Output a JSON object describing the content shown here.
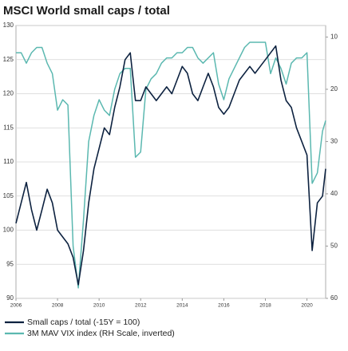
{
  "chart_data": {
    "type": "line",
    "title": "MSCI World small caps / total",
    "x": [
      2006,
      2006.25,
      2006.5,
      2006.75,
      2007,
      2007.25,
      2007.5,
      2007.75,
      2008,
      2008.25,
      2008.5,
      2008.75,
      2009,
      2009.25,
      2009.5,
      2009.75,
      2010,
      2010.25,
      2010.5,
      2010.75,
      2011,
      2011.25,
      2011.5,
      2011.75,
      2012,
      2012.25,
      2012.5,
      2012.75,
      2013,
      2013.25,
      2013.5,
      2013.75,
      2014,
      2014.25,
      2014.5,
      2014.75,
      2015,
      2015.25,
      2015.5,
      2015.75,
      2016,
      2016.25,
      2016.5,
      2016.75,
      2017,
      2017.25,
      2017.5,
      2017.75,
      2018,
      2018.25,
      2018.5,
      2018.75,
      2019,
      2019.25,
      2019.5,
      2019.75,
      2020,
      2020.25,
      2020.5,
      2020.75,
      2020.9
    ],
    "series": [
      {
        "name": "Small caps / total (-15Y = 100)",
        "color": "#0d2240",
        "axis": "y",
        "values": [
          101,
          104,
          107,
          103,
          100,
          103,
          106,
          104,
          100,
          99,
          98,
          96,
          92,
          97,
          104,
          109,
          112,
          115,
          114,
          118,
          121,
          125,
          126,
          119,
          119,
          121,
          120,
          119,
          120,
          121,
          120,
          122,
          124,
          123,
          120,
          119,
          121,
          123,
          121,
          118,
          117,
          118,
          120,
          122,
          123,
          124,
          123,
          124,
          125,
          126,
          127,
          122,
          119,
          118,
          115,
          113,
          111,
          97,
          104,
          105,
          109
        ]
      },
      {
        "name": "3M  MAV VIX index (RH Scale, inverted)",
        "color": "#5bb8b0",
        "axis": "y2",
        "values": [
          13,
          13,
          15,
          13,
          12,
          12,
          15,
          17,
          24,
          22,
          23,
          50,
          58,
          45,
          30,
          25,
          22,
          24,
          25,
          20,
          17,
          16,
          16,
          33,
          32,
          20,
          18,
          17,
          15,
          14,
          14,
          13,
          13,
          12,
          12,
          14,
          15,
          14,
          13,
          19,
          22,
          18,
          16,
          14,
          12,
          11,
          11,
          11,
          11,
          17,
          14,
          16,
          19,
          15,
          14,
          14,
          13,
          38,
          36,
          28,
          26
        ]
      }
    ],
    "xlim": [
      2006,
      2020.9
    ],
    "xticks": [
      2006,
      2008,
      2010,
      2012,
      2014,
      2016,
      2018,
      2020
    ],
    "ylim": [
      90,
      130
    ],
    "yticks": [
      90,
      95,
      100,
      105,
      110,
      115,
      120,
      125,
      130
    ],
    "y2lim": [
      60,
      7.8
    ],
    "y2ticks": [
      10,
      20,
      30,
      40,
      50,
      60
    ],
    "grid": true
  }
}
